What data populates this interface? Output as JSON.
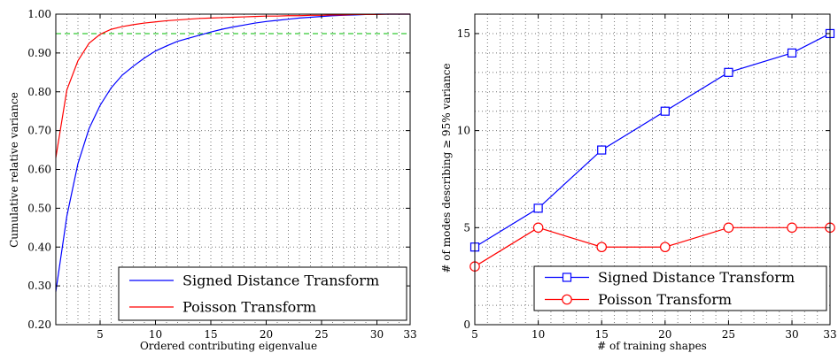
{
  "chart_data": [
    {
      "type": "line",
      "xlabel": "Ordered contributing eigenvalue",
      "ylabel": "Cumulative relative variance",
      "xlim": [
        1,
        33
      ],
      "ylim": [
        0.2,
        1.0
      ],
      "x_ticks": [
        5,
        10,
        15,
        20,
        25,
        30,
        33
      ],
      "y_ticks": [
        0.2,
        0.3,
        0.4,
        0.5,
        0.6,
        0.7,
        0.8,
        0.9,
        1.0
      ],
      "y_tick_labels": [
        "0.20",
        "0.30",
        "0.40",
        "0.50",
        "0.60",
        "0.70",
        "0.80",
        "0.90",
        "1.00"
      ],
      "grid": true,
      "legend_position": "bottom-right",
      "threshold": {
        "y": 0.95,
        "color": "#00bb00",
        "style": "dashed"
      },
      "series": [
        {
          "name": "Signed Distance Transform",
          "color": "#0000ff",
          "x": [
            1,
            2,
            3,
            4,
            5,
            6,
            7,
            8,
            9,
            10,
            11,
            12,
            13,
            14,
            15,
            16,
            17,
            18,
            19,
            20,
            21,
            22,
            23,
            24,
            25,
            26,
            27,
            28,
            29,
            30,
            31,
            32,
            33
          ],
          "values": [
            0.285,
            0.48,
            0.615,
            0.705,
            0.765,
            0.81,
            0.843,
            0.866,
            0.887,
            0.905,
            0.918,
            0.93,
            0.938,
            0.946,
            0.954,
            0.961,
            0.967,
            0.972,
            0.977,
            0.981,
            0.984,
            0.987,
            0.99,
            0.992,
            0.994,
            0.996,
            0.997,
            0.998,
            0.999,
            1.0,
            1.0,
            1.0,
            1.0
          ]
        },
        {
          "name": "Poisson Transform",
          "color": "#ff0000",
          "x": [
            1,
            2,
            3,
            4,
            5,
            6,
            7,
            8,
            9,
            10,
            11,
            12,
            13,
            14,
            15,
            16,
            17,
            18,
            19,
            20,
            21,
            22,
            23,
            24,
            25,
            26,
            27,
            28,
            29,
            30,
            31,
            32,
            33
          ],
          "values": [
            0.63,
            0.805,
            0.88,
            0.925,
            0.948,
            0.961,
            0.968,
            0.973,
            0.977,
            0.98,
            0.983,
            0.985,
            0.987,
            0.989,
            0.99,
            0.991,
            0.992,
            0.993,
            0.994,
            0.995,
            0.995,
            0.996,
            0.996,
            0.997,
            0.997,
            0.998,
            0.998,
            0.999,
            0.999,
            0.999,
            1.0,
            1.0,
            1.0
          ]
        }
      ]
    },
    {
      "type": "line",
      "xlabel": "# of training shapes",
      "ylabel": "# of modes describing ≥ 95% variance",
      "xlim": [
        5,
        33
      ],
      "ylim": [
        0,
        16
      ],
      "x_ticks": [
        5,
        10,
        15,
        20,
        25,
        30,
        33
      ],
      "y_ticks": [
        0,
        5,
        10,
        15
      ],
      "y_tick_labels": [
        "0",
        "5",
        "10",
        "15"
      ],
      "grid": true,
      "legend_position": "bottom-right",
      "series": [
        {
          "name": "Signed Distance Transform",
          "color": "#0000ff",
          "marker": "square",
          "x": [
            5,
            10,
            15,
            20,
            25,
            30,
            33
          ],
          "values": [
            4,
            6,
            9,
            11,
            13,
            14,
            15
          ]
        },
        {
          "name": "Poisson Transform",
          "color": "#ff0000",
          "marker": "circle",
          "x": [
            5,
            10,
            15,
            20,
            25,
            30,
            33
          ],
          "values": [
            3,
            5,
            4,
            4,
            5,
            5,
            5
          ]
        }
      ]
    }
  ]
}
